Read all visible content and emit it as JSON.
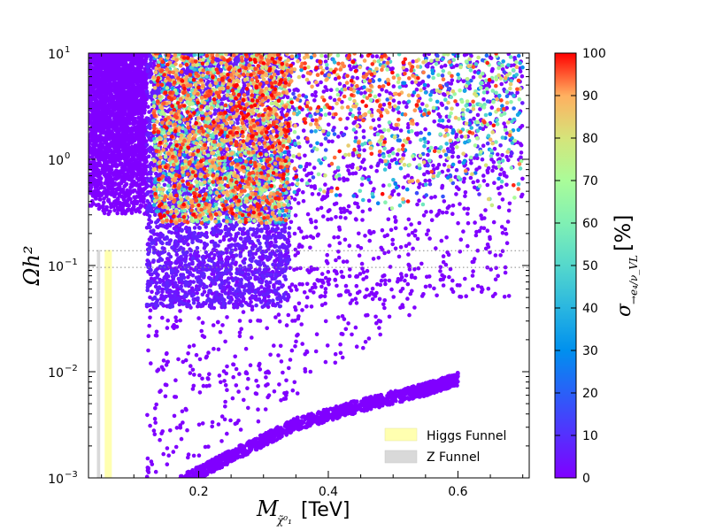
{
  "chart_data": {
    "type": "scatter",
    "xlabel": "M",
    "xlabel_sub": "χ̃⁰₁",
    "xlabel_unit": "[TeV]",
    "ylabel": "Ωh²",
    "yscale": "log",
    "xlim": [
      0.03,
      0.71
    ],
    "ylim": [
      0.001,
      10
    ],
    "x_ticks": [
      {
        "value": 0.2,
        "label": "0.2"
      },
      {
        "value": 0.4,
        "label": "0.4"
      },
      {
        "value": 0.6,
        "label": "0.6"
      }
    ],
    "y_ticks": [
      {
        "value": 0.001,
        "base": "10",
        "exp": "−3"
      },
      {
        "value": 0.01,
        "base": "10",
        "exp": "−2"
      },
      {
        "value": 0.1,
        "base": "10",
        "exp": "−1"
      },
      {
        "value": 1,
        "base": "10",
        "exp": "0"
      },
      {
        "value": 10,
        "base": "10",
        "exp": "1"
      }
    ],
    "reference_lines_y": [
      0.096,
      0.138
    ],
    "bands": [
      {
        "name": "Higgs Funnel",
        "x": [
          0.055,
          0.066
        ],
        "color": "#ffffb0"
      },
      {
        "name": "Z Funnel",
        "x": [
          0.043,
          0.048
        ],
        "color": "#d9d9d9"
      }
    ],
    "legend": {
      "position": "lower-right",
      "entries": [
        "Higgs Funnel",
        "Z Funnel"
      ]
    },
    "colorbar": {
      "label": "σ",
      "label_sub": "→e₄/ν_VL",
      "unit": "[%]",
      "range": [
        0,
        100
      ],
      "ticks": [
        "0",
        "10",
        "20",
        "30",
        "40",
        "50",
        "60",
        "70",
        "80",
        "90",
        "100"
      ]
    },
    "series": [
      {
        "region": "low-mass-high-density",
        "x_range": [
          0.03,
          0.12
        ],
        "y_range": [
          0.3,
          10
        ],
        "color_value": 0
      },
      {
        "region": "main-cloud",
        "x_range": [
          0.12,
          0.34
        ],
        "y_range": [
          0.04,
          10
        ],
        "color_value_range": [
          0,
          100
        ]
      },
      {
        "region": "coannihilation-strip",
        "x": [
          0.17,
          0.25,
          0.35,
          0.45,
          0.55,
          0.6
        ],
        "y": [
          0.0009,
          0.0016,
          0.0032,
          0.0048,
          0.0068,
          0.0085
        ],
        "color_value": 0
      },
      {
        "region": "high-mass-sparse",
        "x_range": [
          0.34,
          0.7
        ],
        "y_range": [
          0.3,
          10
        ],
        "color_value_range": [
          0,
          100
        ]
      }
    ]
  }
}
